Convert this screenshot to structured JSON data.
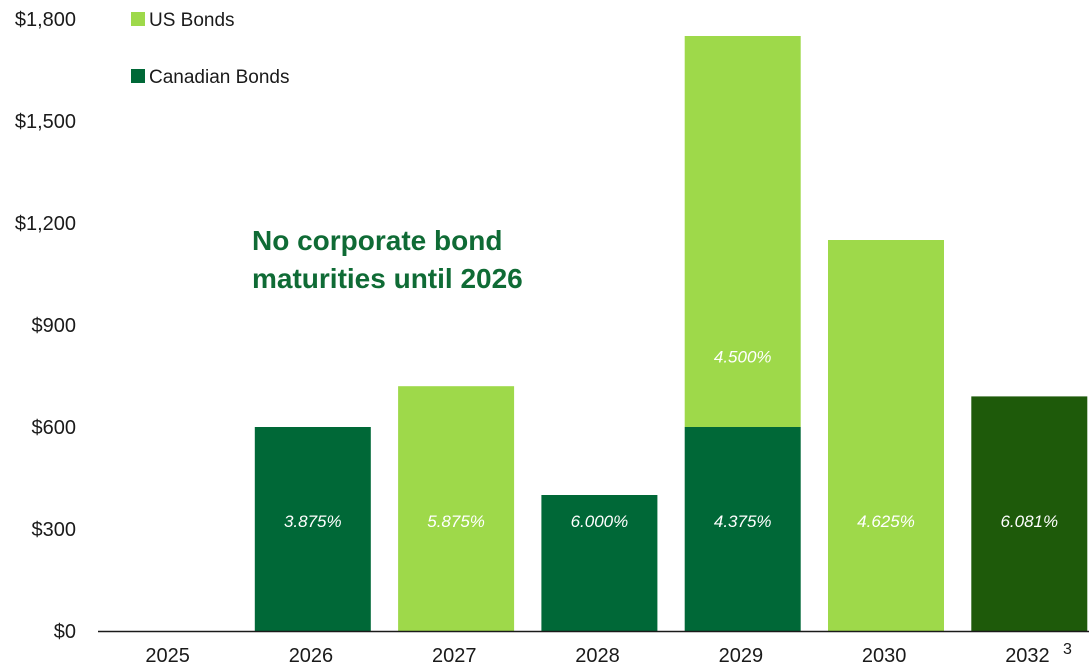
{
  "chart_data": {
    "type": "bar",
    "categories": [
      "2025",
      "2026",
      "2027",
      "2028",
      "2029",
      "2030",
      "2032"
    ],
    "series": [
      {
        "name": "Canadian Bonds",
        "color": "#006837",
        "values": [
          0,
          600,
          0,
          400,
          600,
          0,
          0
        ]
      },
      {
        "name": "US Bonds",
        "color": "#9ed94a",
        "values": [
          0,
          0,
          720,
          0,
          1150,
          1150,
          0
        ]
      },
      {
        "color": "#1e5a0a",
        "values": [
          0,
          0,
          0,
          0,
          0,
          0,
          690
        ]
      }
    ],
    "bar_labels": [
      "",
      "3.875%",
      "5.875%",
      "6.000%",
      "4.375%",
      "4.625%",
      "6.081%"
    ],
    "extra_labels": [
      {
        "category": "2029",
        "series": "US Bonds",
        "text": "4.500%"
      }
    ],
    "yticks": [
      "$0",
      "$300",
      "$600",
      "$900",
      "$1,200",
      "$1,500",
      "$1,800"
    ],
    "ylim": [
      0,
      1800
    ],
    "legend": [
      "US Bonds",
      "Canadian Bonds"
    ],
    "legend_position": "top-left",
    "annotation": [
      "No corporate bond",
      "maturities until 2026"
    ],
    "page_number": "3",
    "grid": false
  }
}
